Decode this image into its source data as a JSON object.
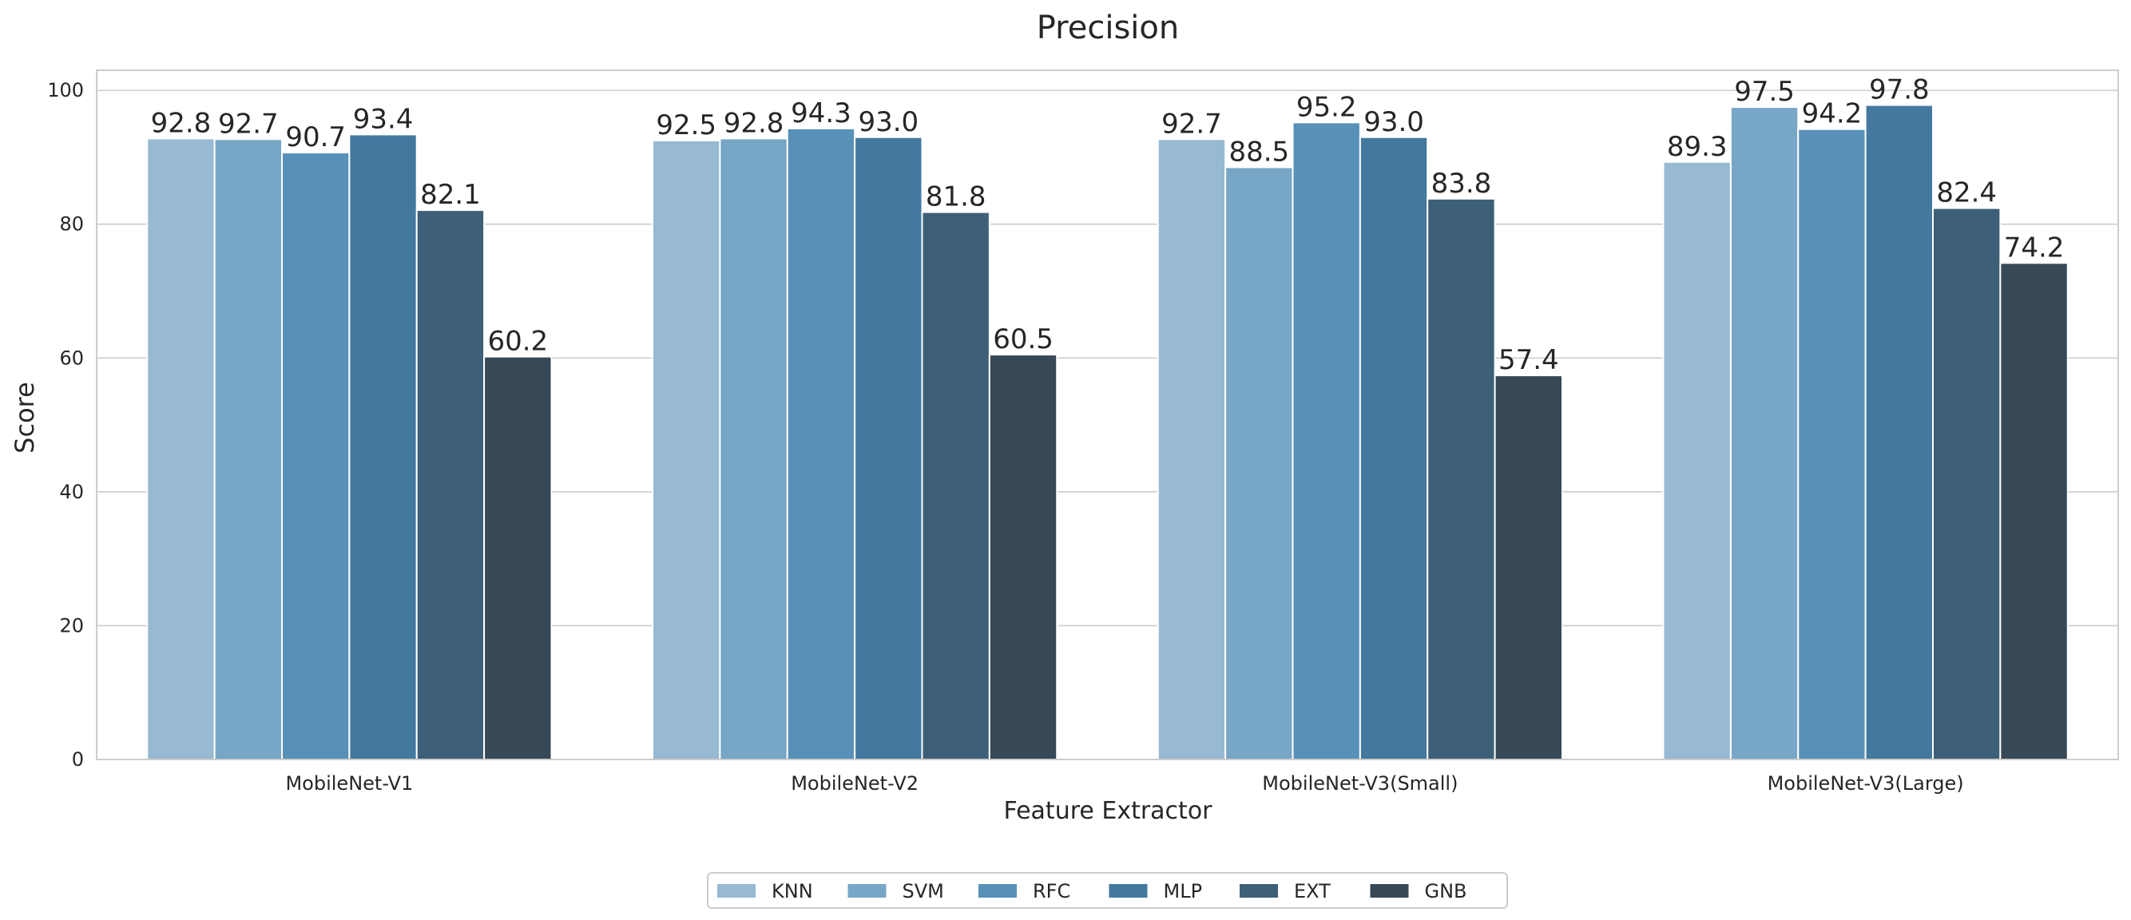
{
  "chart_data": {
    "type": "bar",
    "title": "Precision",
    "xlabel": "Feature Extractor",
    "ylabel": "Score",
    "categories": [
      "MobileNet-V1",
      "MobileNet-V2",
      "MobileNet-V3(Small)",
      "MobileNet-V3(Large)"
    ],
    "ylim": [
      0,
      103
    ],
    "yticks": [
      0,
      20,
      40,
      60,
      80,
      100
    ],
    "grid": true,
    "legend_position": "bottom-center",
    "series": [
      {
        "name": "KNN",
        "color": "#97b9d2",
        "values": [
          92.8,
          92.5,
          92.7,
          89.3
        ],
        "labels": [
          "92.8",
          "92.5",
          "92.7",
          "89.3"
        ]
      },
      {
        "name": "SVM",
        "color": "#77a6c6",
        "values": [
          92.7,
          92.8,
          88.5,
          97.5
        ],
        "labels": [
          "92.7",
          "92.8",
          "88.5",
          "97.5"
        ]
      },
      {
        "name": "RFC",
        "color": "#5890b8",
        "values": [
          90.7,
          94.3,
          95.2,
          94.2
        ],
        "labels": [
          "90.7",
          "94.3",
          "95.2",
          "94.2"
        ]
      },
      {
        "name": "MLP",
        "color": "#43799f",
        "values": [
          93.4,
          93.0,
          93.0,
          97.8
        ],
        "labels": [
          "93.4",
          "93.0",
          "93.0",
          "97.8"
        ]
      },
      {
        "name": "EXT",
        "color": "#3d5f78",
        "values": [
          82.1,
          81.8,
          83.8,
          82.4
        ],
        "labels": [
          "82.1",
          "81.8",
          "83.8",
          "82.4"
        ]
      },
      {
        "name": "GNB",
        "color": "#374856",
        "values": [
          60.2,
          60.5,
          57.4,
          74.2
        ],
        "labels": [
          "60.2",
          "60.5",
          "57.4",
          "74.2"
        ]
      }
    ]
  }
}
